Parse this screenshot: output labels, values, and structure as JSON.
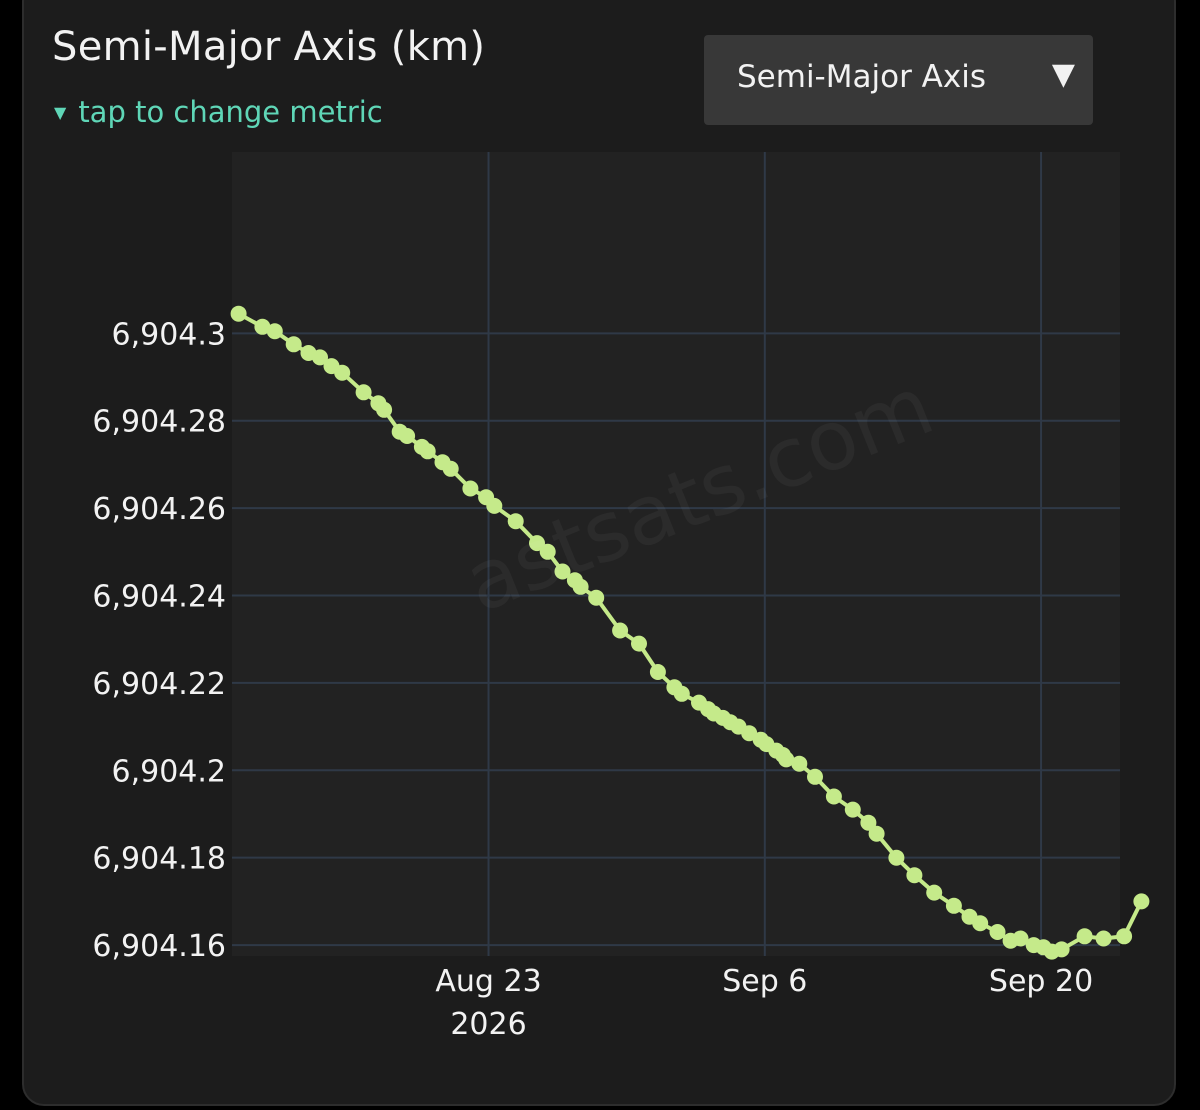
{
  "header": {
    "title": "Semi-Major Axis (km)",
    "hint": "tap to change metric",
    "hint_icon": "triangle-down-icon",
    "hint_color": "#5fd6b7"
  },
  "metric_selector": {
    "selected": "Semi-Major Axis",
    "arrow": "▼"
  },
  "watermark": "astsats.com",
  "colors": {
    "background": "#1c1c1c",
    "plot_background": "#222222",
    "grid": "#2f3947",
    "line": "#c5ea8a"
  },
  "chart_data": {
    "type": "line",
    "xlabel": "",
    "ylabel": "",
    "x_axis": {
      "type": "date",
      "range": [
        "2026-08-10",
        "2026-09-24"
      ]
    },
    "ylim": [
      6904.1575,
      6904.3415
    ],
    "yticks": [
      6904.16,
      6904.18,
      6904.2,
      6904.22,
      6904.24,
      6904.26,
      6904.28,
      6904.3
    ],
    "ytick_labels": [
      "6,904.16",
      "6,904.18",
      "6,904.2",
      "6,904.22",
      "6,904.24",
      "6,904.26",
      "6,904.28",
      "6,904.3"
    ],
    "xticks": [
      {
        "date": "2026-08-23",
        "label": "Aug 23",
        "sublabel": "2026"
      },
      {
        "date": "2026-09-06",
        "label": "Sep 6",
        "sublabel": ""
      },
      {
        "date": "2026-09-20",
        "label": "Sep 20",
        "sublabel": ""
      }
    ],
    "grid": true,
    "series": [
      {
        "color": "#c5ea8a",
        "points": [
          [
            "2026-08-10T08:00",
            6904.3045
          ],
          [
            "2026-08-11T13:00",
            6904.3015
          ],
          [
            "2026-08-12T04:00",
            6904.3005
          ],
          [
            "2026-08-13T03:00",
            6904.2975
          ],
          [
            "2026-08-13T21:00",
            6904.2955
          ],
          [
            "2026-08-14T11:00",
            6904.2945
          ],
          [
            "2026-08-15T01:00",
            6904.2925
          ],
          [
            "2026-08-15T14:00",
            6904.291
          ],
          [
            "2026-08-16T16:00",
            6904.2865
          ],
          [
            "2026-08-17T10:00",
            6904.284
          ],
          [
            "2026-08-17T17:00",
            6904.2825
          ],
          [
            "2026-08-18T12:00",
            6904.2775
          ],
          [
            "2026-08-18T21:00",
            6904.2765
          ],
          [
            "2026-08-19T15:00",
            6904.274
          ],
          [
            "2026-08-19T22:00",
            6904.273
          ],
          [
            "2026-08-20T16:00",
            6904.2705
          ],
          [
            "2026-08-21T02:00",
            6904.269
          ],
          [
            "2026-08-22T02:00",
            6904.2645
          ],
          [
            "2026-08-22T21:00",
            6904.2625
          ],
          [
            "2026-08-23T07:00",
            6904.2605
          ],
          [
            "2026-08-24T09:00",
            6904.257
          ],
          [
            "2026-08-25T11:00",
            6904.252
          ],
          [
            "2026-08-26T00:00",
            6904.25
          ],
          [
            "2026-08-26T18:00",
            6904.2455
          ],
          [
            "2026-08-27T09:00",
            6904.2435
          ],
          [
            "2026-08-27T16:00",
            6904.242
          ],
          [
            "2026-08-28T11:00",
            6904.2395
          ],
          [
            "2026-08-29T16:00",
            6904.232
          ],
          [
            "2026-08-30T15:00",
            6904.229
          ],
          [
            "2026-08-31T14:00",
            6904.2225
          ],
          [
            "2026-09-01T10:00",
            6904.219
          ],
          [
            "2026-09-01T19:00",
            6904.2175
          ],
          [
            "2026-09-02T16:00",
            6904.2155
          ],
          [
            "2026-09-03T03:00",
            6904.214
          ],
          [
            "2026-09-03T10:00",
            6904.213
          ],
          [
            "2026-09-03T21:00",
            6904.212
          ],
          [
            "2026-09-04T06:00",
            6904.211
          ],
          [
            "2026-09-04T16:00",
            6904.21
          ],
          [
            "2026-09-05T05:00",
            6904.2085
          ],
          [
            "2026-09-05T19:00",
            6904.207
          ],
          [
            "2026-09-06T02:00",
            6904.206
          ],
          [
            "2026-09-06T14:00",
            6904.2045
          ],
          [
            "2026-09-06T22:00",
            6904.2035
          ],
          [
            "2026-09-07T02:00",
            6904.2025
          ],
          [
            "2026-09-07T18:00",
            6904.2015
          ],
          [
            "2026-09-08T13:00",
            6904.1985
          ],
          [
            "2026-09-09T12:00",
            6904.194
          ],
          [
            "2026-09-10T11:00",
            6904.191
          ],
          [
            "2026-09-11T06:00",
            6904.188
          ],
          [
            "2026-09-11T16:00",
            6904.1855
          ],
          [
            "2026-09-12T16:00",
            6904.18
          ],
          [
            "2026-09-13T14:00",
            6904.176
          ],
          [
            "2026-09-14T14:00",
            6904.172
          ],
          [
            "2026-09-15T14:00",
            6904.169
          ],
          [
            "2026-09-16T09:00",
            6904.1665
          ],
          [
            "2026-09-16T22:00",
            6904.165
          ],
          [
            "2026-09-17T19:00",
            6904.163
          ],
          [
            "2026-09-18T11:00",
            6904.161
          ],
          [
            "2026-09-18T23:00",
            6904.1615
          ],
          [
            "2026-09-19T15:00",
            6904.16
          ],
          [
            "2026-09-20T03:00",
            6904.1595
          ],
          [
            "2026-09-20T13:00",
            6904.1585
          ],
          [
            "2026-09-21T01:00",
            6904.159
          ],
          [
            "2026-09-22T05:00",
            6904.162
          ],
          [
            "2026-09-23T04:00",
            6904.1615
          ],
          [
            "2026-09-24T05:00",
            6904.162
          ],
          [
            "2026-09-25T02:00",
            6904.17
          ]
        ]
      }
    ]
  }
}
